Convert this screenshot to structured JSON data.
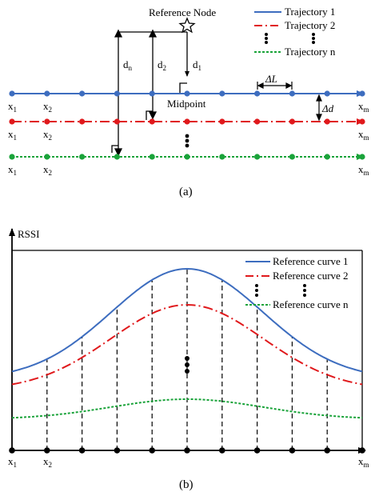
{
  "colors": {
    "trajectory1": "#3d6dbf",
    "trajectory2": "#e0191c",
    "trajectoryN": "#1aa33a",
    "axis": "#000000"
  },
  "panel_a": {
    "reference_node_label": "Reference Node",
    "midpoint_label": "Midpoint",
    "distance_labels": [
      "d_n",
      "d_2",
      "d_1"
    ],
    "delta_l_label": "ΔL",
    "delta_d_label": "Δd",
    "x_first": "x1",
    "x_second": "x2",
    "x_last": "xm",
    "legend": [
      "Trajectory 1",
      "Trajectory 2",
      "Trajectory n"
    ],
    "caption": "(a)"
  },
  "panel_b": {
    "y_axis_label": "RSSI",
    "x_first": "x1",
    "x_second": "x2",
    "x_last": "xm",
    "legend": [
      "Reference curve 1",
      "Reference curve 2",
      "Reference curve n"
    ],
    "caption": "(b)"
  }
}
